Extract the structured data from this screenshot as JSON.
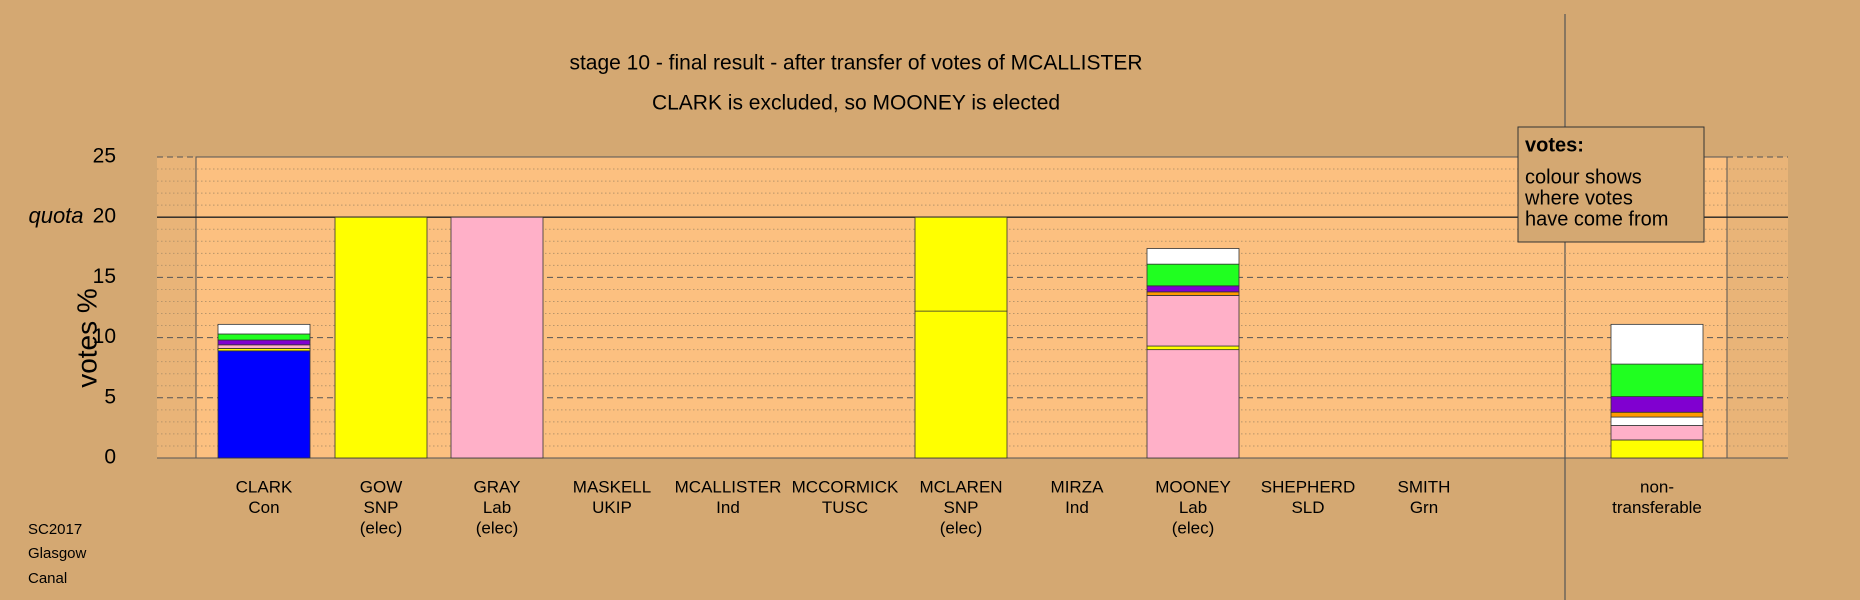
{
  "chart_data": {
    "type": "stacked-bar",
    "title": "stage 10 - final result - after transfer of votes of MCALLISTER",
    "subtitle": "CLARK is excluded, so MOONEY is elected",
    "y_label": "votes %",
    "categories": [
      [
        "CLARK",
        "Con"
      ],
      [
        "GOW",
        "SNP",
        "(elec)"
      ],
      [
        "GRAY",
        "Lab",
        "(elec)"
      ],
      [
        "MASKELL",
        "UKIP"
      ],
      [
        "MCALLISTER",
        "Ind"
      ],
      [
        "MCCORMICK",
        "TUSC"
      ],
      [
        "MCLAREN",
        "SNP",
        "(elec)"
      ],
      [
        "MIRZA",
        "Ind"
      ],
      [
        "MOONEY",
        "Lab",
        "(elec)"
      ],
      [
        "SHEPHERD",
        "SLD"
      ],
      [
        "SMITH",
        "Grn"
      ],
      [
        "non-",
        "transferable"
      ]
    ],
    "series": [
      {
        "color": "#0000ff",
        "values": [
          8.9,
          0,
          0,
          0,
          0,
          0,
          0,
          0,
          0,
          0,
          0,
          0
        ]
      },
      {
        "color": "#ffff00",
        "values": [
          0.2,
          20,
          0,
          0,
          0,
          0,
          12.2,
          0,
          0,
          0,
          0,
          1.5
        ]
      },
      {
        "color": "#ffb0c8",
        "values": [
          0.3,
          0,
          20,
          0,
          0,
          0,
          0,
          0,
          9.0,
          0,
          0,
          1.2
        ]
      },
      {
        "color": "#ffff00",
        "values": [
          0,
          0,
          0,
          0,
          0,
          0,
          7.8,
          0,
          0.3,
          0,
          0,
          0
        ]
      },
      {
        "color": "#ffb0c8",
        "values": [
          0,
          0,
          0,
          0,
          0,
          0,
          0,
          0,
          4.2,
          0,
          0,
          0
        ]
      },
      {
        "color": "#ffffff",
        "values": [
          0,
          0,
          0,
          0,
          0,
          0,
          0,
          0,
          0,
          0,
          0,
          0.7
        ]
      },
      {
        "color": "#ff9900",
        "values": [
          0,
          0,
          0,
          0,
          0,
          0,
          0,
          0,
          0.3,
          0,
          0,
          0.4
        ]
      },
      {
        "color": "#8000d0",
        "values": [
          0.4,
          0,
          0,
          0,
          0,
          0,
          0,
          0,
          0.5,
          0,
          0,
          1.3
        ]
      },
      {
        "color": "#20ff20",
        "values": [
          0.5,
          0,
          0,
          0,
          0,
          0,
          0,
          0,
          1.8,
          0,
          0,
          2.7
        ]
      },
      {
        "color": "#ffffff",
        "values": [
          0.8,
          0,
          0,
          0,
          0,
          0,
          0,
          0,
          1.3,
          0,
          0,
          3.3
        ]
      }
    ],
    "ylim": [
      0,
      25
    ],
    "yticks": [
      0,
      5,
      10,
      15,
      20,
      25
    ],
    "minor_yticks": [
      1,
      2,
      3,
      4,
      6,
      7,
      8,
      9,
      11,
      12,
      13,
      14,
      16,
      17,
      18,
      19,
      21,
      22,
      23,
      24
    ],
    "quota": 20,
    "quota_label": "quota",
    "legend": {
      "title": "votes:",
      "lines": [
        "colour shows",
        "where votes",
        "have come from"
      ]
    },
    "footer": [
      "SC2017",
      "Glasgow",
      "Canal"
    ]
  }
}
